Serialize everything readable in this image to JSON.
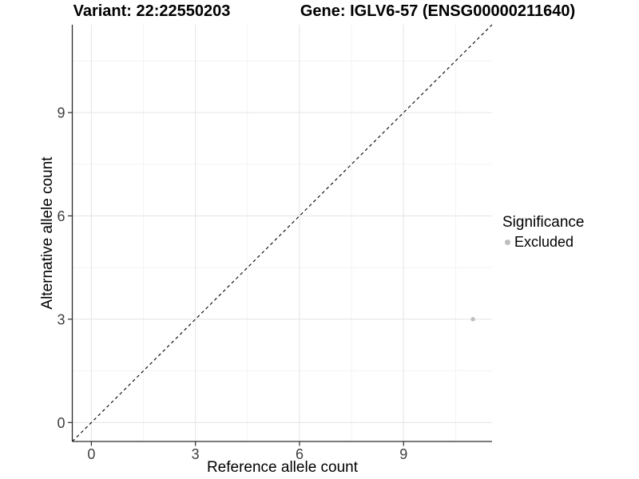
{
  "figure": {
    "title_left": "Variant: 22:22550203",
    "title_right": "Gene: IGLV6-57 (ENSG00000211640)"
  },
  "chart_data": {
    "type": "scatter",
    "xlabel": "Reference allele count",
    "ylabel": "Alternative allele count",
    "xlim": [
      -0.55,
      11.55
    ],
    "ylim": [
      -0.55,
      11.55
    ],
    "x_ticks": [
      0,
      3,
      6,
      9
    ],
    "y_ticks": [
      0,
      3,
      6,
      9
    ],
    "x_minor_breaks": [
      1.5,
      4.5,
      7.5,
      10.5
    ],
    "y_minor_breaks": [
      1.5,
      4.5,
      7.5,
      10.5
    ],
    "grid": true,
    "identity_line": {
      "slope": 1,
      "intercept": 0,
      "style": "dashed",
      "color": "#000000"
    },
    "series": [
      {
        "name": "Excluded",
        "color": "#bebebe",
        "points": [
          {
            "x": 11,
            "y": 3
          }
        ]
      }
    ],
    "legend": {
      "position": "right",
      "title": "Significance",
      "items": [
        {
          "label": "Excluded",
          "color": "#bebebe"
        }
      ]
    },
    "colors": {
      "background": "#ffffff",
      "grid_major": "#e6e6e6",
      "grid_minor": "#f0f0f0",
      "axis_line": "#2b2b2b",
      "tick_text": "#404040",
      "point": "#bebebe"
    }
  }
}
